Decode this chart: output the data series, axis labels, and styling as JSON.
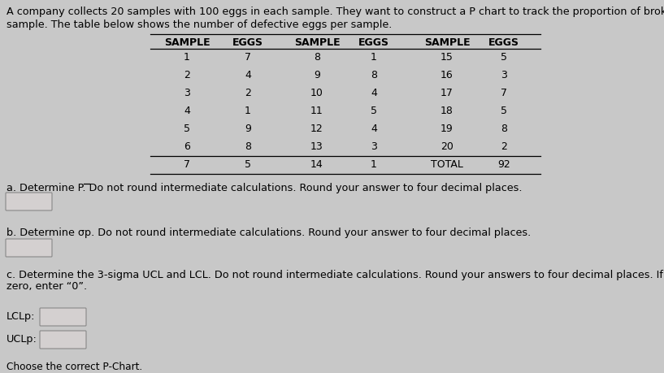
{
  "intro_text_line1": "A company collects 20 samples with 100 eggs in each sample. They want to construct a P chart to track the proportion of broken eggs in each",
  "intro_text_line2": "sample. The table below shows the number of defective eggs per sample.",
  "table_headers": [
    "SAMPLE",
    "EGGS",
    "SAMPLE",
    "EGGS",
    "SAMPLE",
    "EGGS"
  ],
  "table_data": [
    [
      "1",
      "7",
      "8",
      "1",
      "15",
      "5"
    ],
    [
      "2",
      "4",
      "9",
      "8",
      "16",
      "3"
    ],
    [
      "3",
      "2",
      "10",
      "4",
      "17",
      "7"
    ],
    [
      "4",
      "1",
      "11",
      "5",
      "18",
      "5"
    ],
    [
      "5",
      "9",
      "12",
      "4",
      "19",
      "8"
    ],
    [
      "6",
      "8",
      "13",
      "3",
      "20",
      "2"
    ],
    [
      "7",
      "5",
      "14",
      "1",
      "TOTAL",
      "92"
    ]
  ],
  "question_a": "a. Determine P. Do not round intermediate calculations. Round your answer to four decimal places.",
  "question_b": "b. Determine σp. Do not round intermediate calculations. Round your answer to four decimal places.",
  "question_c": "c. Determine the 3-sigma UCL and LCL. Do not round intermediate calculations. Round your answers to four decimal places. If your answer is",
  "question_c2": "zero, enter “0”.",
  "lclp_label": "LCLp:",
  "uclp_label": "UCLp:",
  "bottom_text": "Choose the correct P-Chart.",
  "bg_color": "#c8c8c8",
  "box_color": "#d4d0d0",
  "text_color": "#000000",
  "font_size_intro": 9.2,
  "font_size_table": 9.0,
  "font_size_questions": 9.2
}
